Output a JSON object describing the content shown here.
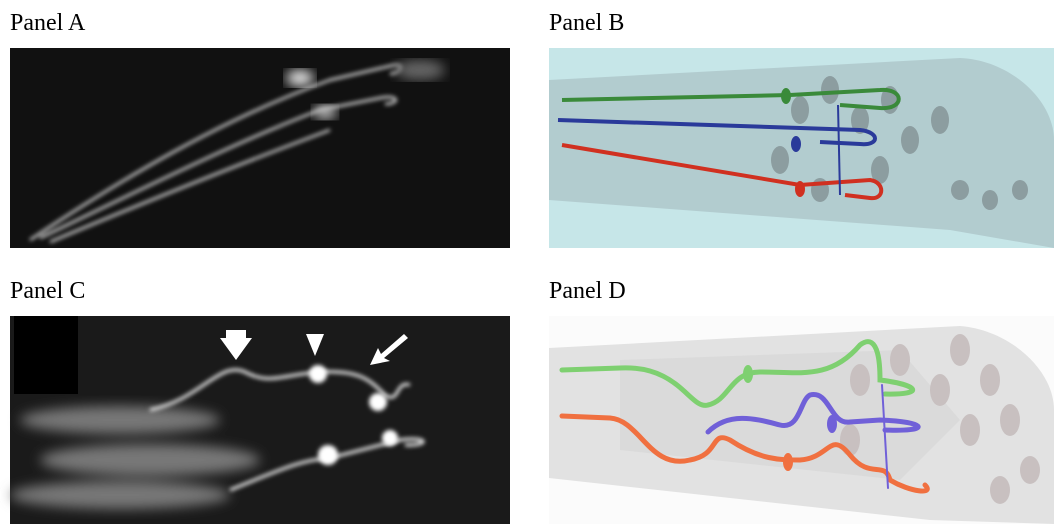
{
  "panels": [
    {
      "label": "Panel A"
    },
    {
      "label": "Panel B"
    },
    {
      "label": "Panel C"
    },
    {
      "label": "Panel D"
    }
  ]
}
